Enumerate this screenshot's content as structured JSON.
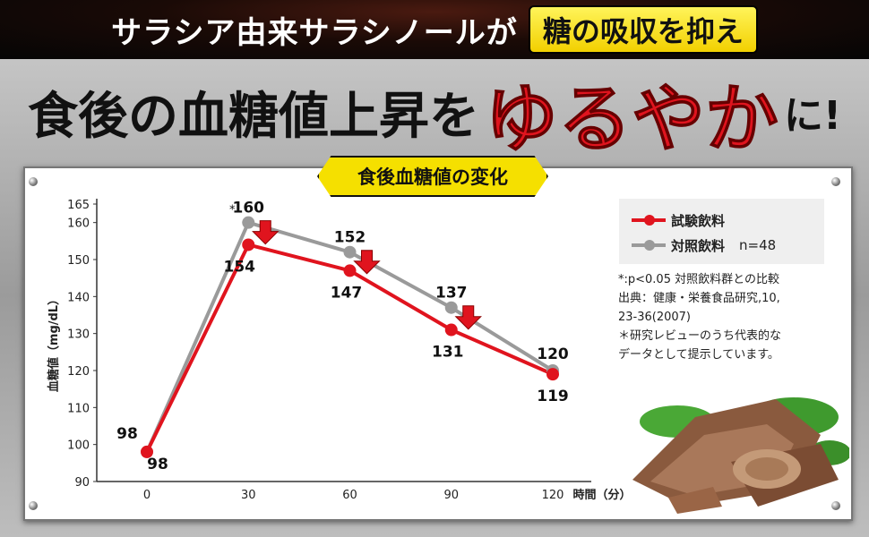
{
  "banner": {
    "text": "サラシア由来サラシノールが",
    "highlight": "糖の吸収を抑え"
  },
  "headline": {
    "part1": "食後の血糖値上昇を",
    "emphasis": "ゆるやか",
    "part2": "に!"
  },
  "colors": {
    "test": "#e0141e",
    "control": "#9a9a9a",
    "accent": "#f5e000"
  },
  "chart_data": {
    "type": "line",
    "title": "食後血糖値の変化",
    "xlabel": "時間（分）",
    "ylabel": "血糖値（mg/dL）",
    "ylim": [
      90,
      165
    ],
    "yticks": [
      90,
      100,
      110,
      120,
      130,
      140,
      150,
      160,
      165
    ],
    "x": [
      0,
      30,
      60,
      90,
      120
    ],
    "series": [
      {
        "name": "試験飲料",
        "values": [
          98,
          154,
          147,
          131,
          119
        ]
      },
      {
        "name": "対照飲料",
        "values": [
          98,
          160,
          152,
          137,
          120
        ]
      }
    ],
    "significance_marker": "*",
    "legend_position": "right",
    "grid": false
  },
  "legend": {
    "test": "試験飲料",
    "control": "対照飲料",
    "n": "n=48"
  },
  "notes": [
    "*:p<0.05 対照飲料群との比較",
    "出典：健康・栄養食品研究,10,",
    "23-36(2007)",
    "＊研究レビューのうち代表的な",
    "データとして提示しています。"
  ]
}
